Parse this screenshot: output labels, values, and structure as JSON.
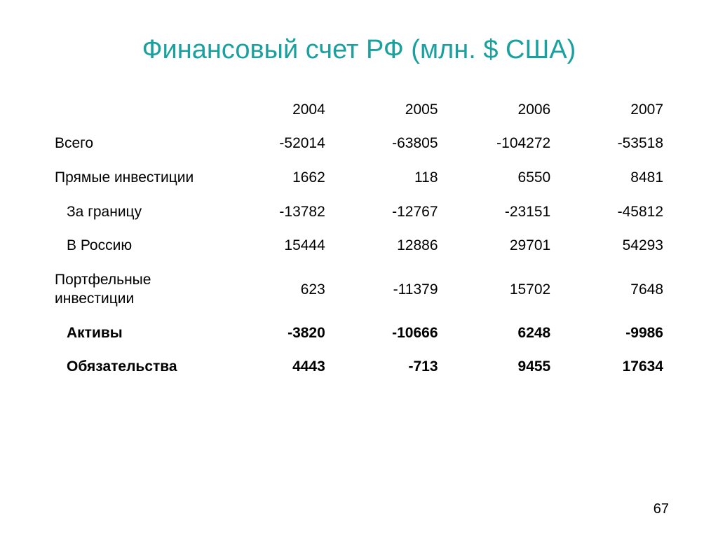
{
  "title": "Финансовый счет РФ (млн.  $ США)",
  "title_color": "#1ba0a0",
  "text_color": "#000000",
  "background_color": "#ffffff",
  "title_fontsize": 38,
  "cell_fontsize": 21,
  "columns": [
    "",
    "2004",
    "2005",
    "2006",
    "2007"
  ],
  "rows": [
    {
      "label": "Всего",
      "indent": 0,
      "bold": false,
      "values": [
        "-52014",
        "-63805",
        "-104272",
        "-53518"
      ]
    },
    {
      "label": "Прямые инвестиции",
      "indent": 0,
      "bold": false,
      "multiline": true,
      "values": [
        "1662",
        "118",
        "6550",
        "8481"
      ]
    },
    {
      "label": "За границу",
      "indent": 1,
      "bold": false,
      "values": [
        "-13782",
        "-12767",
        "-23151",
        "-45812"
      ]
    },
    {
      "label": "В Россию",
      "indent": 1,
      "bold": false,
      "values": [
        "15444",
        "12886",
        "29701",
        "54293"
      ]
    },
    {
      "label": "Портфельные инвестиции",
      "indent": 0,
      "bold": false,
      "multiline": true,
      "values": [
        "623",
        "-11379",
        "15702",
        "7648"
      ]
    },
    {
      "label": "Активы",
      "indent": 1,
      "bold": true,
      "values": [
        "-3820",
        "-10666",
        "6248",
        "-9986"
      ]
    },
    {
      "label": "Обязательства",
      "indent": 1,
      "bold": true,
      "values": [
        "4443",
        "-713",
        "9455",
        "17634"
      ]
    }
  ],
  "page_number": "67"
}
